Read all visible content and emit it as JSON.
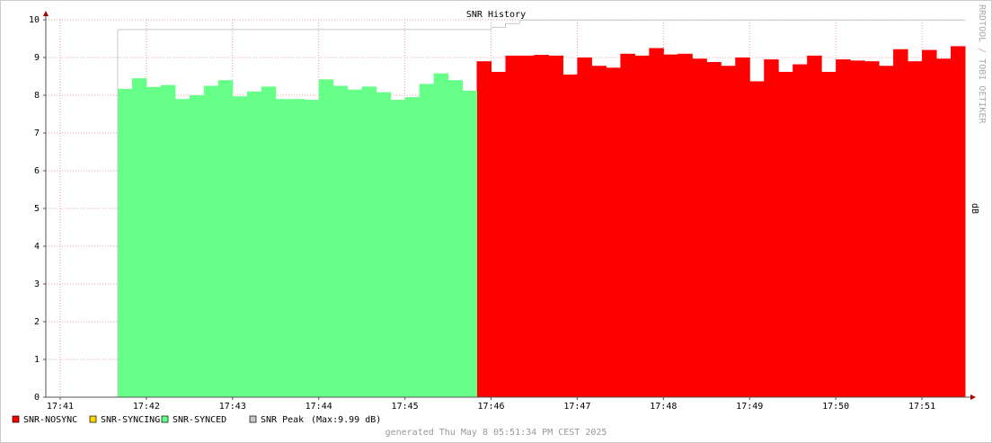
{
  "chart_data": {
    "type": "step-area",
    "title": "SNR History",
    "y_label": "dB",
    "watermark": "RRDTOOL / TOBI OETIKER",
    "footer": "generated Thu May  8 05:51:34 PM CEST 2025",
    "peak_note": "(Max:9.99 dB)",
    "grid": true,
    "xlim": [
      50,
      690
    ],
    "xticks": [
      {
        "value": 60,
        "label": "17:41"
      },
      {
        "value": 120,
        "label": "17:42"
      },
      {
        "value": 180,
        "label": "17:43"
      },
      {
        "value": 240,
        "label": "17:44"
      },
      {
        "value": 300,
        "label": "17:45"
      },
      {
        "value": 360,
        "label": "17:46"
      },
      {
        "value": 420,
        "label": "17:47"
      },
      {
        "value": 480,
        "label": "17:48"
      },
      {
        "value": 540,
        "label": "17:49"
      },
      {
        "value": 600,
        "label": "17:50"
      },
      {
        "value": 660,
        "label": "17:51"
      }
    ],
    "ylim": [
      0,
      10
    ],
    "yticks": [
      0,
      1,
      2,
      3,
      4,
      5,
      6,
      7,
      8,
      9,
      10
    ],
    "x": [
      100,
      110,
      120,
      130,
      140,
      150,
      160,
      170,
      180,
      190,
      200,
      210,
      220,
      230,
      240,
      250,
      260,
      270,
      280,
      290,
      300,
      310,
      320,
      330,
      340,
      350,
      360,
      370,
      380,
      390,
      400,
      410,
      420,
      430,
      440,
      450,
      460,
      470,
      480,
      490,
      500,
      510,
      520,
      530,
      540,
      550,
      560,
      570,
      580,
      590,
      600,
      610,
      620,
      630,
      640,
      650,
      660,
      670,
      680
    ],
    "series": [
      {
        "name": "SNR-NOSYNC",
        "color": "#ff0000",
        "kind": "area",
        "values": [
          null,
          null,
          null,
          null,
          null,
          null,
          null,
          null,
          null,
          null,
          null,
          null,
          null,
          null,
          null,
          null,
          null,
          null,
          null,
          null,
          null,
          null,
          null,
          null,
          null,
          8.9,
          8.62,
          9.05,
          9.05,
          9.07,
          9.05,
          8.55,
          9.0,
          8.78,
          8.73,
          9.1,
          9.05,
          9.25,
          9.08,
          9.1,
          8.97,
          8.88,
          8.78,
          9.0,
          8.37,
          8.95,
          8.62,
          8.82,
          9.05,
          8.62,
          8.95,
          8.92,
          8.9,
          8.78,
          9.22,
          8.9,
          9.2,
          8.97,
          9.3
        ]
      },
      {
        "name": "SNR-SYNCING",
        "color": "#ffd700",
        "kind": "area",
        "values": [
          null,
          null,
          null,
          null,
          null,
          null,
          null,
          null,
          null,
          null,
          null,
          null,
          null,
          null,
          null,
          null,
          null,
          null,
          null,
          null,
          null,
          null,
          null,
          null,
          null,
          null,
          null,
          null,
          null,
          null,
          null,
          null,
          null,
          null,
          null,
          null,
          null,
          null,
          null,
          null,
          null,
          null,
          null,
          null,
          null,
          null,
          null,
          null,
          null,
          null,
          null,
          null,
          null,
          null,
          null,
          null,
          null,
          null,
          null
        ]
      },
      {
        "name": "SNR-SYNCED",
        "color": "#66ff88",
        "kind": "area",
        "values": [
          8.17,
          8.45,
          8.22,
          8.27,
          7.9,
          8.0,
          8.25,
          8.4,
          7.97,
          8.1,
          8.23,
          7.9,
          7.9,
          7.88,
          8.42,
          8.25,
          8.15,
          8.23,
          8.08,
          7.88,
          7.95,
          8.3,
          8.58,
          8.4,
          8.12,
          null,
          null,
          null,
          null,
          null,
          null,
          null,
          null,
          null,
          null,
          null,
          null,
          null,
          null,
          null,
          null,
          null,
          null,
          null,
          null,
          null,
          null,
          null,
          null,
          null,
          null,
          null,
          null,
          null,
          null,
          null,
          null,
          null,
          null
        ]
      },
      {
        "name": "SNR Peak",
        "color": "#c8c8c8",
        "kind": "line",
        "values": [
          9.74,
          9.74,
          9.74,
          9.74,
          9.74,
          9.74,
          9.74,
          9.74,
          9.74,
          9.74,
          9.74,
          9.74,
          9.74,
          9.74,
          9.74,
          9.74,
          9.74,
          9.74,
          9.74,
          9.74,
          9.74,
          9.74,
          9.74,
          9.74,
          9.74,
          9.74,
          9.8,
          9.9,
          9.99,
          9.99,
          9.99,
          9.99,
          9.99,
          9.99,
          9.99,
          9.99,
          9.99,
          9.99,
          9.99,
          9.99,
          9.99,
          9.99,
          9.99,
          9.99,
          9.99,
          9.99,
          9.99,
          9.99,
          9.99,
          9.99,
          9.99,
          9.99,
          9.99,
          9.99,
          9.99,
          9.99,
          9.99,
          9.99,
          9.99
        ]
      }
    ]
  }
}
